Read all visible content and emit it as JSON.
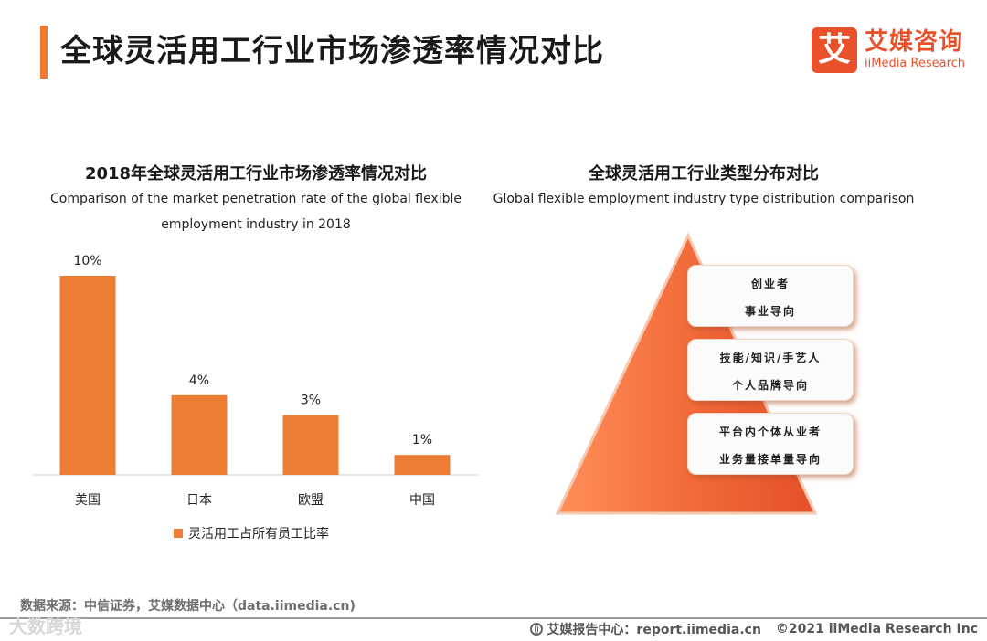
{
  "header": {
    "title": "全球灵活用工行业市场渗透率情况对比",
    "logo": {
      "mark": "艾",
      "name_cn": "艾媒咨询",
      "name_en": "iiMedia Research",
      "color": "#e8512a"
    }
  },
  "left": {
    "title_cn": "2018年全球灵活用工行业市场渗透率情况对比",
    "title_en_line1": "Comparison of the market penetration rate of the global flexible",
    "title_en_line2": "employment industry in 2018"
  },
  "chart_data": {
    "type": "bar",
    "categories": [
      "美国",
      "日本",
      "欧盟",
      "中国"
    ],
    "series": [
      {
        "name": "灵活用工占所有员工比率",
        "values": [
          10,
          4,
          3,
          1
        ],
        "color": "#ee7d34"
      }
    ],
    "data_labels": [
      "10%",
      "4%",
      "3%",
      "1%"
    ],
    "ylim": [
      0,
      10
    ],
    "legend": "bottom",
    "grid": false
  },
  "right": {
    "title_cn": "全球灵活用工行业类型分布对比",
    "title_en": "Global flexible employment industry type distribution comparison",
    "pyramid_color": "#f26b3a",
    "levels": [
      {
        "line1": "创业者",
        "line2": "事业导向"
      },
      {
        "line1": "技能/知识/手艺人",
        "line2": "个人品牌导向"
      },
      {
        "line1": "平台内个体从业者",
        "line2": "业务量接单量导向"
      }
    ]
  },
  "footer": {
    "source": "数据来源：中信证券，艾媒数据中心（data.iimedia.cn)",
    "center": "艾媒报告中心：report.iimedia.cn",
    "copyright": "©2021  iiMedia Research  Inc",
    "watermark": "大数跨境"
  }
}
